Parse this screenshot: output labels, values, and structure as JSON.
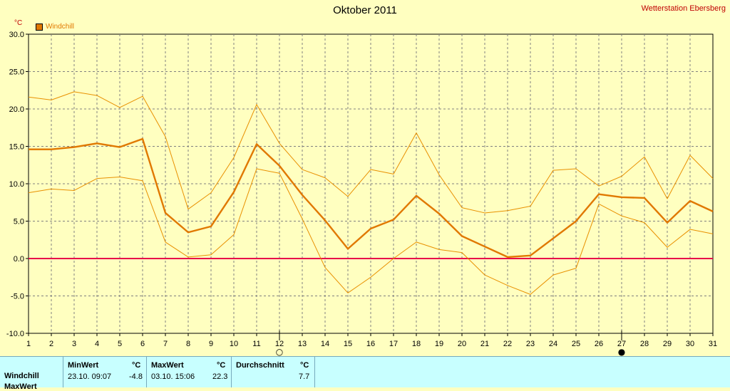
{
  "header": {
    "title": "Oktober 2011",
    "station": "Wetterstation Ebersberg",
    "unit": "°C",
    "legend": "Windchill"
  },
  "colors": {
    "main": "#e07800",
    "bounds": "#e89000",
    "zero": "#e8004a",
    "grid": "#808080"
  },
  "chart_data": {
    "type": "line",
    "title": "Oktober 2011",
    "ylabel": "°C",
    "xlim": [
      1,
      31
    ],
    "ylim": [
      -10,
      30
    ],
    "yticks": [
      "30.0",
      "25.0",
      "20.0",
      "15.0",
      "10.0",
      "5.0",
      "0.0",
      "-5.0",
      "-10.0"
    ],
    "x": [
      1,
      2,
      3,
      4,
      5,
      6,
      7,
      8,
      9,
      10,
      11,
      12,
      13,
      14,
      15,
      16,
      17,
      18,
      19,
      20,
      21,
      22,
      23,
      24,
      25,
      26,
      27,
      28,
      29,
      30,
      31
    ],
    "series": [
      {
        "name": "Windchill",
        "values": [
          14.6,
          14.6,
          14.9,
          15.4,
          14.9,
          16.0,
          6.1,
          3.5,
          4.3,
          8.9,
          15.3,
          12.4,
          8.5,
          5.1,
          1.3,
          4.0,
          5.2,
          8.4,
          6.0,
          3.0,
          1.6,
          0.2,
          0.4,
          2.7,
          5.0,
          8.6,
          8.2,
          8.1,
          4.8,
          7.7,
          6.3
        ]
      },
      {
        "values": [
          21.6,
          21.2,
          22.3,
          21.8,
          20.2,
          21.7,
          16.3,
          6.6,
          8.8,
          13.5,
          20.6,
          15.4,
          11.9,
          10.8,
          8.3,
          11.9,
          11.3,
          16.8,
          11.2,
          6.8,
          6.1,
          6.4,
          7.0,
          11.8,
          12.0,
          9.7,
          11.0,
          13.6,
          8.0,
          13.8,
          10.7
        ]
      },
      {
        "values": [
          8.8,
          9.3,
          9.1,
          10.7,
          10.9,
          10.4,
          2.2,
          0.2,
          0.5,
          3.2,
          12.0,
          11.4,
          5.3,
          -1.2,
          -4.6,
          -2.5,
          0.0,
          2.2,
          1.2,
          0.8,
          -2.2,
          -3.6,
          -4.8,
          -2.2,
          -1.3,
          7.3,
          5.7,
          4.8,
          1.5,
          3.9,
          3.3
        ]
      }
    ],
    "markers": [
      {
        "x": 12,
        "symbol": "○"
      },
      {
        "x": 27,
        "symbol": "●"
      }
    ],
    "grid": true
  },
  "stats": {
    "col1_header": "MinWert",
    "col1_unit": "°C",
    "col2_header": "MaxWert",
    "col2_unit": "°C",
    "col3_header": "Durchschnitt",
    "col3_unit": "°C",
    "row_label": "Windchill",
    "min_time": "23.10.  09:07",
    "min_value": "-4.8",
    "max_time": "03.10.  15:06",
    "max_value": "22.3",
    "avg_value": "7.7",
    "row2_label": "MaxWert"
  }
}
